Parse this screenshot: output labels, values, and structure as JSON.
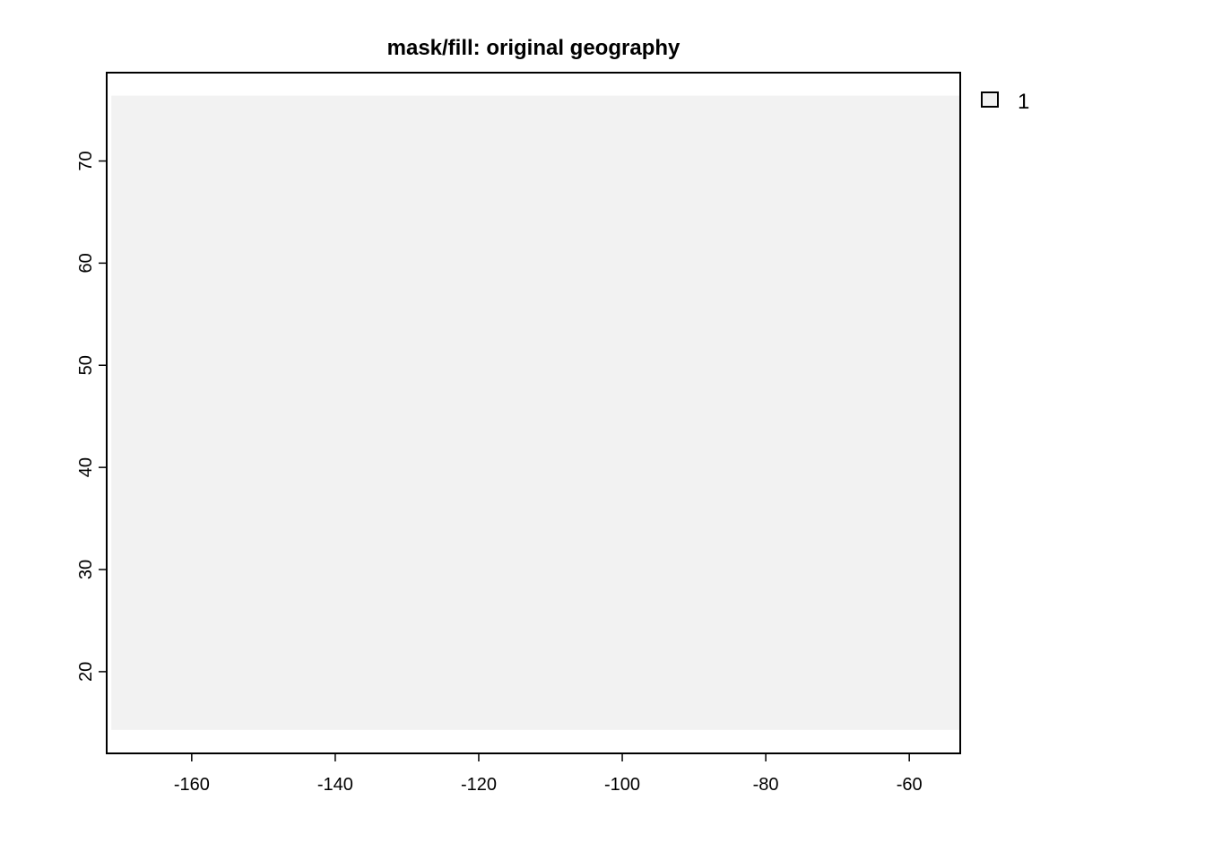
{
  "chart_data": {
    "type": "heatmap",
    "title": "mask/fill: original geography",
    "xlabel": "",
    "ylabel": "",
    "xlim": [
      -171.85,
      -52.9
    ],
    "ylim": [
      12.0,
      78.65
    ],
    "x_ticks": [
      -160,
      -140,
      -120,
      -100,
      -80,
      -60
    ],
    "y_ticks": [
      20,
      30,
      40,
      50,
      60,
      70
    ],
    "x_tick_labels": [
      "-160",
      "-140",
      "-120",
      "-100",
      "-80",
      "-60"
    ],
    "y_tick_labels": [
      "20",
      "30",
      "40",
      "50",
      "60",
      "70"
    ],
    "raster": {
      "extent": {
        "xmin": -171.2,
        "xmax": -52.9,
        "ymin": 14.3,
        "ymax": 76.4
      },
      "value": 1,
      "color": "#f2f2f2"
    },
    "legend": {
      "position": "top-right",
      "entries": [
        {
          "label": "1",
          "color": "#f2f2f2"
        }
      ]
    },
    "grid": false
  }
}
